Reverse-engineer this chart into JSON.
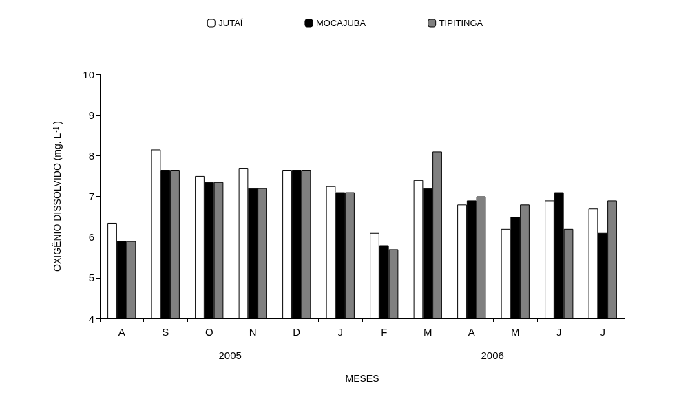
{
  "chart_data": {
    "type": "bar",
    "categories": [
      "A",
      "S",
      "O",
      "N",
      "D",
      "J",
      "F",
      "M",
      "A",
      "M",
      "J",
      "J"
    ],
    "series": [
      {
        "name": "JUTAÍ",
        "color": "#ffffff",
        "values": [
          6.35,
          8.15,
          7.5,
          7.7,
          7.65,
          7.25,
          6.1,
          7.4,
          6.8,
          6.2,
          6.9,
          6.7
        ]
      },
      {
        "name": "MOCAJUBA",
        "color": "#000000",
        "values": [
          5.9,
          7.65,
          7.35,
          7.2,
          7.65,
          7.1,
          5.8,
          7.2,
          6.9,
          6.5,
          7.1,
          6.1
        ]
      },
      {
        "name": "TIPITINGA",
        "color": "#808080",
        "values": [
          5.9,
          7.65,
          7.35,
          7.2,
          7.65,
          7.1,
          5.7,
          8.1,
          7.0,
          6.8,
          6.2,
          6.9
        ]
      }
    ],
    "xlabel": "MESES",
    "ylabel": "OXIGÊNIO DISSOLVIDO (mg. L$^{-1}$)",
    "annotations": [
      "2005",
      "2006"
    ],
    "ylim": [
      4,
      10
    ],
    "yticks": [
      4,
      5,
      6,
      7,
      8,
      9,
      10
    ],
    "grid": false,
    "legend": "top"
  }
}
